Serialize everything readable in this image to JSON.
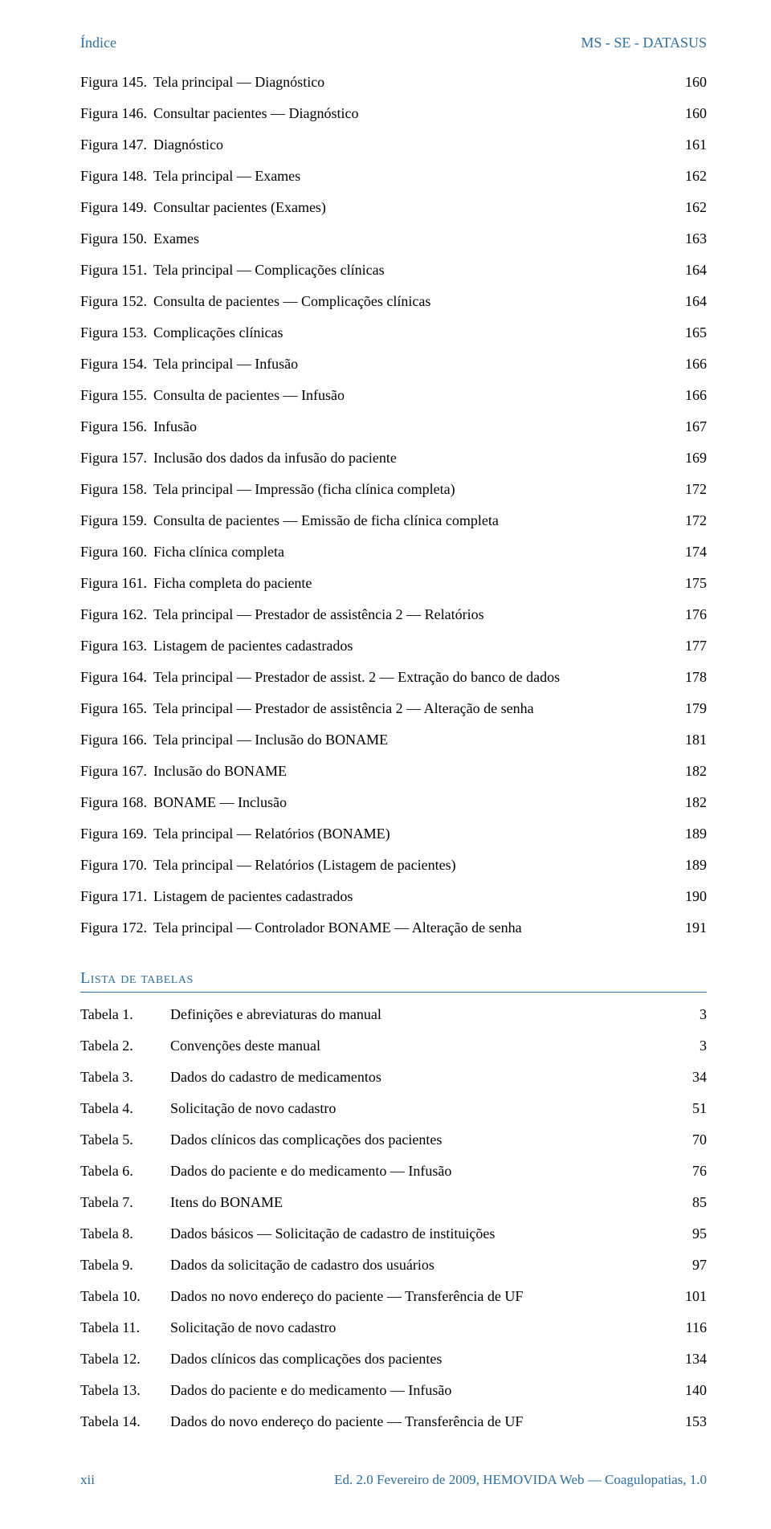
{
  "header": {
    "left": "Índice",
    "right": "MS - SE - DATASUS"
  },
  "figures": [
    {
      "label": "Figura 145.",
      "title": "Tela principal — Diagnóstico",
      "page": "160"
    },
    {
      "label": "Figura 146.",
      "title": "Consultar pacientes — Diagnóstico",
      "page": "160"
    },
    {
      "label": "Figura 147.",
      "title": "Diagnóstico",
      "page": "161"
    },
    {
      "label": "Figura 148.",
      "title": "Tela principal — Exames",
      "page": "162"
    },
    {
      "label": "Figura 149.",
      "title": "Consultar pacientes (Exames)",
      "page": "162"
    },
    {
      "label": "Figura 150.",
      "title": "Exames",
      "page": "163"
    },
    {
      "label": "Figura 151.",
      "title": "Tela principal — Complicações clínicas",
      "page": "164"
    },
    {
      "label": "Figura 152.",
      "title": "Consulta de pacientes — Complicações clínicas",
      "page": "164"
    },
    {
      "label": "Figura 153.",
      "title": "Complicações clínicas",
      "page": "165"
    },
    {
      "label": "Figura 154.",
      "title": "Tela principal — Infusão",
      "page": "166"
    },
    {
      "label": "Figura 155.",
      "title": "Consulta de pacientes — Infusão",
      "page": "166"
    },
    {
      "label": "Figura 156.",
      "title": "Infusão",
      "page": "167"
    },
    {
      "label": "Figura 157.",
      "title": "Inclusão dos dados da infusão do paciente",
      "page": "169"
    },
    {
      "label": "Figura 158.",
      "title": "Tela principal — Impressão (ficha clínica completa)",
      "page": "172"
    },
    {
      "label": "Figura 159.",
      "title": "Consulta de pacientes — Emissão de ficha clínica completa",
      "page": "172"
    },
    {
      "label": "Figura 160.",
      "title": "Ficha clínica completa",
      "page": "174"
    },
    {
      "label": "Figura 161.",
      "title": "Ficha completa do paciente",
      "page": "175"
    },
    {
      "label": "Figura 162.",
      "title": "Tela principal — Prestador de assistência 2 — Relatórios",
      "page": "176"
    },
    {
      "label": "Figura 163.",
      "title": "Listagem de pacientes cadastrados",
      "page": "177"
    },
    {
      "label": "Figura 164.",
      "title": "Tela principal — Prestador de assist. 2 — Extração do banco de dados",
      "page": "178"
    },
    {
      "label": "Figura 165.",
      "title": "Tela principal — Prestador de assistência 2 — Alteração de senha",
      "page": "179"
    },
    {
      "label": "Figura 166.",
      "title": "Tela principal — Inclusão do BONAME",
      "page": "181"
    },
    {
      "label": "Figura 167.",
      "title": "Inclusão do BONAME",
      "page": "182"
    },
    {
      "label": "Figura 168.",
      "title": "BONAME — Inclusão",
      "page": "182"
    },
    {
      "label": "Figura 169.",
      "title": "Tela principal — Relatórios (BONAME)",
      "page": "189"
    },
    {
      "label": "Figura 170.",
      "title": "Tela principal — Relatórios (Listagem de pacientes)",
      "page": "189"
    },
    {
      "label": "Figura 171.",
      "title": "Listagem de pacientes cadastrados",
      "page": "190"
    },
    {
      "label": "Figura 172.",
      "title": "Tela principal — Controlador BONAME — Alteração de senha",
      "page": "191"
    }
  ],
  "tables_heading": "Lista de tabelas",
  "tables": [
    {
      "label": "Tabela 1.",
      "title": "Definições e abreviaturas do manual",
      "page": "3"
    },
    {
      "label": "Tabela 2.",
      "title": "Convenções deste manual",
      "page": "3"
    },
    {
      "label": "Tabela 3.",
      "title": "Dados do cadastro de medicamentos",
      "page": "34"
    },
    {
      "label": "Tabela 4.",
      "title": "Solicitação de novo cadastro",
      "page": "51"
    },
    {
      "label": "Tabela 5.",
      "title": "Dados clínicos das complicações dos pacientes",
      "page": "70"
    },
    {
      "label": "Tabela 6.",
      "title": "Dados do paciente e do medicamento — Infusão",
      "page": "76"
    },
    {
      "label": "Tabela 7.",
      "title": "Itens do BONAME",
      "page": "85"
    },
    {
      "label": "Tabela 8.",
      "title": "Dados básicos — Solicitação de cadastro de instituições",
      "page": "95"
    },
    {
      "label": "Tabela 9.",
      "title": "Dados da solicitação de cadastro dos usuários",
      "page": "97"
    },
    {
      "label": "Tabela 10.",
      "title": "Dados no novo endereço do paciente — Transferência de UF",
      "page": "101"
    },
    {
      "label": "Tabela 11.",
      "title": "Solicitação de novo cadastro",
      "page": "116"
    },
    {
      "label": "Tabela 12.",
      "title": "Dados clínicos das complicações dos pacientes",
      "page": "134"
    },
    {
      "label": "Tabela 13.",
      "title": "Dados do paciente e do medicamento — Infusão",
      "page": "140"
    },
    {
      "label": "Tabela 14.",
      "title": "Dados do novo endereço do paciente — Transferência de UF",
      "page": "153"
    }
  ],
  "footer": {
    "left": "xii",
    "right": "Ed. 2.0 Fevereiro de 2009, HEMOVIDA Web — Coagulopatias, 1.0"
  },
  "colors": {
    "accent": "#2b6fa5",
    "text": "#000000",
    "background": "#ffffff"
  },
  "typography": {
    "body_fontsize_pt": 13,
    "heading_fontsize_pt": 15,
    "font_family": "Palatino Linotype / Book Antiqua"
  }
}
